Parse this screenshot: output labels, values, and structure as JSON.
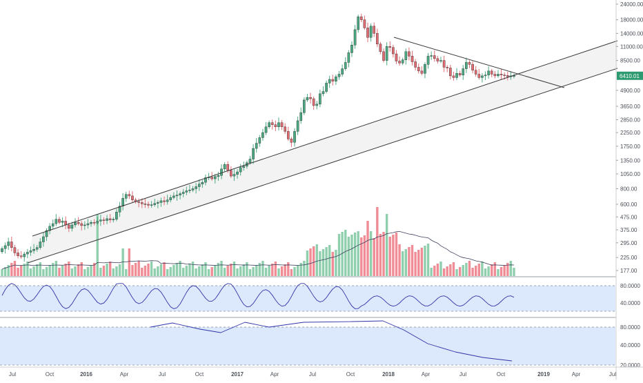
{
  "chart_data": {
    "type": "candlestick",
    "scale": "log",
    "price_axis": {
      "ticks": [
        177,
        225,
        295,
        375,
        475,
        600,
        800,
        1050,
        1350,
        1750,
        2250,
        2850,
        3650,
        4900,
        6410.01,
        8500,
        11000,
        14000,
        18000,
        24000
      ],
      "tick_labels": [
        "177.00",
        "225.00",
        "295.00",
        "375.00",
        "475.00",
        "600.00",
        "800.00",
        "1050.00",
        "1350.00",
        "1750.00",
        "2250.00",
        "2850.00",
        "3650.00",
        "4900.00",
        "",
        "8500.00",
        "11000.00",
        "14000.00",
        "18000.00",
        "24000.00"
      ],
      "last_price_label": "6410.01",
      "ylim": [
        160,
        25000
      ]
    },
    "time_axis": {
      "labels": [
        "Jul",
        "Oct",
        "2016",
        "Apr",
        "Jul",
        "Oct",
        "2017",
        "Apr",
        "Jul",
        "Oct",
        "2018",
        "Apr",
        "Jul",
        "Oct",
        "2019",
        "Apr",
        "Jul"
      ]
    },
    "series": {
      "candles_weekly": "approx. Jul 2015 – Oct 2018, bullish = green, bearish = red",
      "volume_ma": "line over volume histogram"
    },
    "indicator_1": {
      "levels": [
        80,
        40
      ],
      "tick_labels": [
        "80.0000",
        "40.0000"
      ]
    },
    "indicator_2": {
      "levels": [
        80,
        40,
        20
      ],
      "tick_labels": [
        "80.0000",
        "40.0000",
        "20.0000"
      ]
    },
    "colors": {
      "up": "#4aa981",
      "down": "#e06b73",
      "vol_up": "#90cfae",
      "vol_down": "#f08c95",
      "indicator_line": "#2e32a8",
      "indicator_bg": "#dce8fb",
      "last_price_bg": "#2e9a72",
      "channel_fill": "#f3f3f3"
    }
  }
}
